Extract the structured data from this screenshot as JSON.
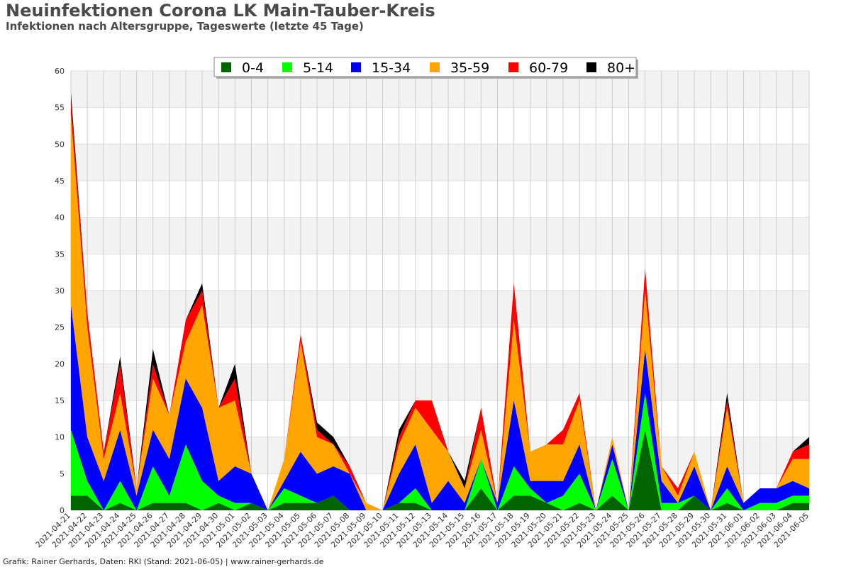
{
  "title": "Neuinfektionen Corona LK Main-Tauber-Kreis",
  "subtitle": "Infektionen nach Altersgruppe, Tageswerte (letzte 45 Tage)",
  "footer": "Grafik: Rainer Gerhards, Daten: RKI (Stand: 2021-06-05) | www.rainer-gerhards.de",
  "chart_data": {
    "type": "area",
    "stacked": true,
    "ylim": [
      0,
      60
    ],
    "yticks": [
      0,
      5,
      10,
      15,
      20,
      25,
      30,
      35,
      40,
      45,
      50,
      55,
      60
    ],
    "grid": true,
    "legend_position": "top-center",
    "x": [
      "2021-04-21",
      "2021-04-22",
      "2021-04-23",
      "2021-04-24",
      "2021-04-25",
      "2021-04-26",
      "2021-04-27",
      "2021-04-28",
      "2021-04-29",
      "2021-04-30",
      "2021-05-01",
      "2021-05-02",
      "2021-05-03",
      "2021-05-04",
      "2021-05-05",
      "2021-05-06",
      "2021-05-07",
      "2021-05-08",
      "2021-05-09",
      "2021-05-10",
      "2021-05-11",
      "2021-05-12",
      "2021-05-13",
      "2021-05-14",
      "2021-05-15",
      "2021-05-16",
      "2021-05-17",
      "2021-05-18",
      "2021-05-19",
      "2021-05-20",
      "2021-05-21",
      "2021-05-22",
      "2021-05-23",
      "2021-05-24",
      "2021-05-25",
      "2021-05-26",
      "2021-05-27",
      "2021-05-28",
      "2021-05-29",
      "2021-05-30",
      "2021-05-31",
      "2021-06-01",
      "2021-06-02",
      "2021-06-03",
      "2021-06-04",
      "2021-06-05"
    ],
    "series": [
      {
        "name": "0-4",
        "color": "#006400",
        "values": [
          2,
          2,
          0,
          1,
          0,
          1,
          1,
          1,
          0,
          1,
          0,
          1,
          0,
          1,
          1,
          1,
          2,
          0,
          0,
          0,
          1,
          1,
          0,
          0,
          0,
          3,
          0,
          2,
          2,
          1,
          0,
          1,
          0,
          2,
          0,
          11,
          0,
          0,
          2,
          0,
          1,
          0,
          0,
          0,
          1,
          1
        ]
      },
      {
        "name": "5-14",
        "color": "#00ff00",
        "values": [
          9,
          2,
          0,
          3,
          0,
          5,
          1,
          8,
          4,
          1,
          1,
          0,
          0,
          2,
          1,
          0,
          0,
          0,
          0,
          0,
          0,
          2,
          0,
          0,
          0,
          4,
          0,
          4,
          1,
          0,
          2,
          4,
          0,
          5,
          0,
          5,
          1,
          1,
          0,
          0,
          2,
          0,
          1,
          1,
          1,
          1
        ]
      },
      {
        "name": "15-34",
        "color": "#0000ff",
        "values": [
          17,
          6,
          4,
          7,
          2,
          5,
          5,
          9,
          10,
          2,
          5,
          4,
          0,
          1,
          6,
          4,
          4,
          5,
          0,
          0,
          4,
          6,
          1,
          4,
          1,
          0,
          1,
          9,
          1,
          3,
          2,
          4,
          0,
          2,
          0,
          6,
          3,
          0,
          4,
          0,
          3,
          1,
          2,
          2,
          2,
          1
        ]
      },
      {
        "name": "35-59",
        "color": "#ffa500",
        "values": [
          26,
          15,
          3,
          5,
          1,
          7,
          6,
          5,
          14,
          10,
          9,
          0,
          0,
          3,
          15,
          5,
          3,
          0,
          1,
          0,
          4,
          5,
          10,
          4,
          2,
          4,
          0,
          11,
          4,
          5,
          5,
          6,
          0,
          1,
          0,
          8,
          2,
          1,
          2,
          0,
          8,
          0,
          0,
          0,
          3,
          4
        ]
      },
      {
        "name": "60-79",
        "color": "#ff0000",
        "values": [
          2,
          2,
          1,
          4,
          0,
          2,
          0,
          3,
          2,
          0,
          3,
          0,
          0,
          0,
          1,
          1,
          0,
          1,
          0,
          0,
          1,
          1,
          4,
          0,
          0,
          3,
          0,
          5,
          0,
          0,
          2,
          1,
          0,
          0,
          0,
          3,
          0,
          1,
          0,
          0,
          1,
          0,
          0,
          0,
          1,
          2
        ]
      },
      {
        "name": "80+",
        "color": "#000000",
        "values": [
          1,
          0,
          0,
          1,
          0,
          2,
          0,
          0,
          1,
          0,
          2,
          0,
          0,
          0,
          0,
          1,
          1,
          0,
          0,
          0,
          1,
          0,
          0,
          0,
          1,
          0,
          0,
          0,
          0,
          0,
          0,
          0,
          0,
          0,
          0,
          0,
          0,
          0,
          0,
          0,
          1,
          0,
          0,
          0,
          0,
          1
        ]
      }
    ]
  }
}
